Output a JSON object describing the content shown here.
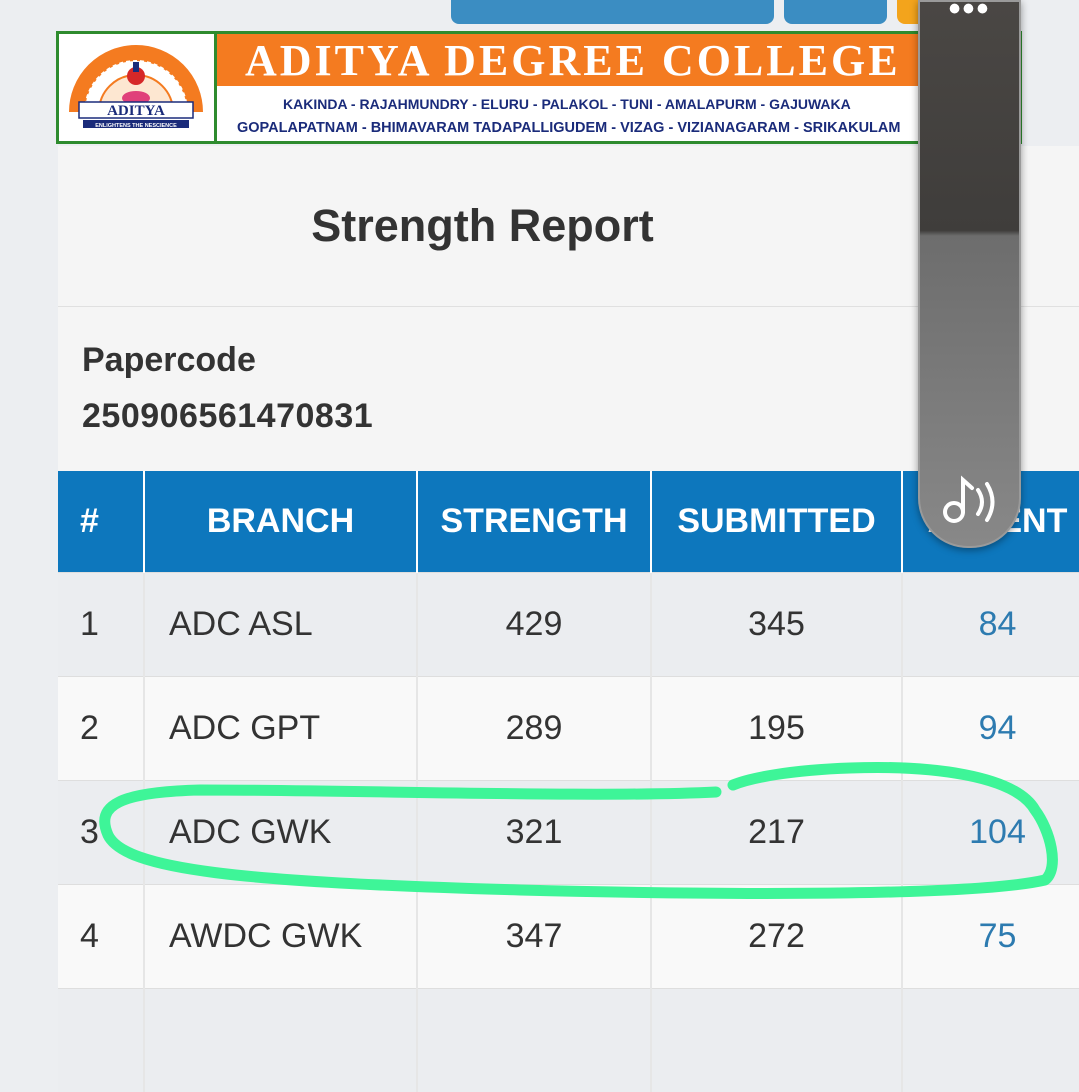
{
  "banner": {
    "college_name": "ADITYA DEGREE COLLEGE",
    "locations_line1": "KAKINDA - RAJAHMUNDRY - ELURU - PALAKOL - TUNI - AMALAPURM - GAJUWAKA",
    "locations_line2": "GOPALAPATNAM - BHIMAVARAM TADAPALLIGUDEM - VIZAG - VIZIANAGARAM - SRIKAKULAM",
    "logo_text": "ADITYA",
    "logo_tagline": "ENLIGHTENS THE NESCIENCE"
  },
  "report": {
    "title": "Strength Report",
    "papercode_label": "Papercode",
    "papercode_value": "250906561470831"
  },
  "table": {
    "headers": [
      "#",
      "BRANCH",
      "STRENGTH",
      "SUBMITTED",
      "ABSENT"
    ],
    "rows": [
      {
        "num": "1",
        "branch": "ADC ASL",
        "strength": "429",
        "submitted": "345",
        "absent": "84"
      },
      {
        "num": "2",
        "branch": "ADC GPT",
        "strength": "289",
        "submitted": "195",
        "absent": "94"
      },
      {
        "num": "3",
        "branch": "ADC GWK",
        "strength": "321",
        "submitted": "217",
        "absent": "104"
      },
      {
        "num": "4",
        "branch": "AWDC GWK",
        "strength": "347",
        "submitted": "272",
        "absent": "75"
      }
    ]
  },
  "overlay": {
    "menu_dots": "•••",
    "highlight_color": "#3ef598",
    "highlighted_row": "3"
  },
  "colors": {
    "header_blue": "#0d77bd",
    "absent_link": "#2d7bb0",
    "banner_orange": "#f47b20",
    "banner_border": "#2e8b2e"
  }
}
